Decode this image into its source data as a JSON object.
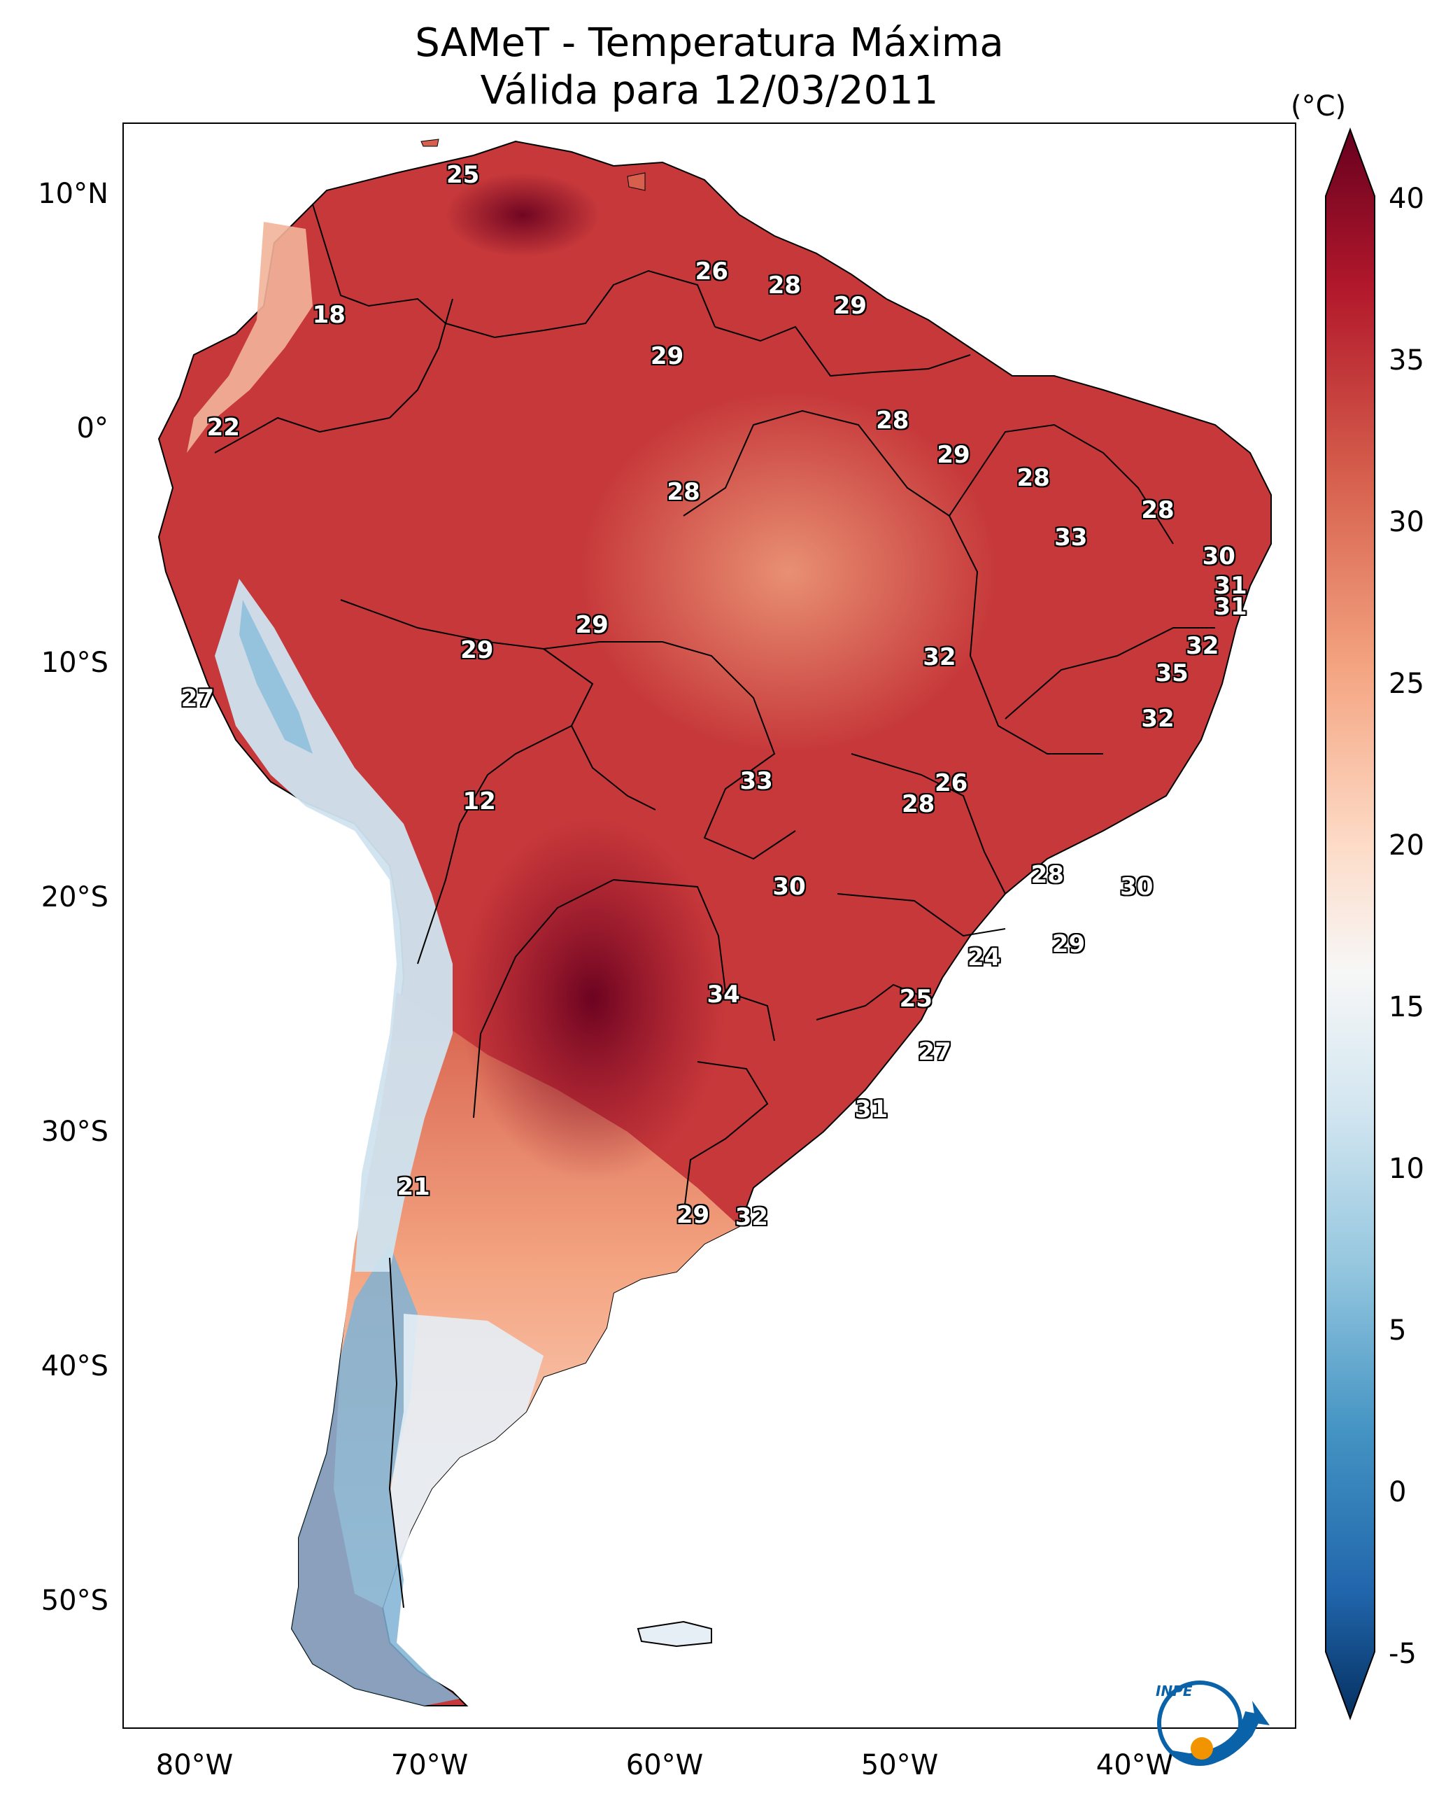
{
  "title": {
    "line1": "SAMeT - Temperatura Máxima",
    "line2": "Válida para 12/03/2011"
  },
  "axes": {
    "lat_labels": [
      "10°N",
      "0°",
      "10°S",
      "20°S",
      "30°S",
      "40°S",
      "50°S"
    ],
    "lat_values": [
      10,
      0,
      -10,
      -20,
      -30,
      -40,
      -50
    ],
    "lon_labels": [
      "80°W",
      "70°W",
      "60°W",
      "50°W",
      "40°W"
    ],
    "lon_values": [
      -80,
      -70,
      -60,
      -50,
      -40
    ],
    "lon_range": [
      -83,
      -33
    ],
    "lat_range": [
      13,
      -57
    ]
  },
  "colorbar": {
    "unit": "(°C)",
    "tick_labels": [
      "40",
      "35",
      "30",
      "25",
      "20",
      "15",
      "10",
      "5",
      "0",
      "-5"
    ],
    "tick_values": [
      40,
      35,
      30,
      25,
      20,
      15,
      10,
      5,
      0,
      -5
    ],
    "range": [
      -5,
      40
    ],
    "colors": [
      "#053061",
      "#2166ac",
      "#4393c3",
      "#92c5de",
      "#d1e5f0",
      "#f7f7f7",
      "#fddbc7",
      "#f4a582",
      "#d6604d",
      "#b2182b",
      "#67001f"
    ]
  },
  "map_values": [
    {
      "value": "25",
      "lon": -68.5,
      "lat": 10.7
    },
    {
      "value": "26",
      "lon": -57.9,
      "lat": 6.5
    },
    {
      "value": "28",
      "lon": -54.8,
      "lat": 5.9
    },
    {
      "value": "29",
      "lon": -52.0,
      "lat": 5.0
    },
    {
      "value": "18",
      "lon": -74.2,
      "lat": 4.6
    },
    {
      "value": "29",
      "lon": -59.8,
      "lat": 2.8
    },
    {
      "value": "22",
      "lon": -78.7,
      "lat": -0.3
    },
    {
      "value": "28",
      "lon": -50.2,
      "lat": 0.0
    },
    {
      "value": "29",
      "lon": -47.6,
      "lat": -1.5
    },
    {
      "value": "28",
      "lon": -59.1,
      "lat": -3.1
    },
    {
      "value": "28",
      "lon": -44.2,
      "lat": -2.5
    },
    {
      "value": "28",
      "lon": -38.9,
      "lat": -3.9
    },
    {
      "value": "33",
      "lon": -42.6,
      "lat": -5.1
    },
    {
      "value": "30",
      "lon": -36.3,
      "lat": -5.9
    },
    {
      "value": "31",
      "lon": -35.8,
      "lat": -7.2
    },
    {
      "value": "31",
      "lon": -35.8,
      "lat": -8.1
    },
    {
      "value": "29",
      "lon": -63.0,
      "lat": -8.9
    },
    {
      "value": "29",
      "lon": -67.9,
      "lat": -10.0
    },
    {
      "value": "32",
      "lon": -37.0,
      "lat": -9.8
    },
    {
      "value": "32",
      "lon": -48.2,
      "lat": -10.3
    },
    {
      "value": "35",
      "lon": -38.3,
      "lat": -11.0
    },
    {
      "value": "27",
      "lon": -79.8,
      "lat": -12.1
    },
    {
      "value": "32",
      "lon": -38.9,
      "lat": -13.0
    },
    {
      "value": "33",
      "lon": -56.0,
      "lat": -15.7
    },
    {
      "value": "26",
      "lon": -47.7,
      "lat": -15.8
    },
    {
      "value": "28",
      "lon": -49.1,
      "lat": -16.7
    },
    {
      "value": "12",
      "lon": -67.8,
      "lat": -16.6
    },
    {
      "value": "30",
      "lon": -54.6,
      "lat": -20.3
    },
    {
      "value": "28",
      "lon": -43.6,
      "lat": -19.8
    },
    {
      "value": "30",
      "lon": -39.8,
      "lat": -20.3
    },
    {
      "value": "29",
      "lon": -42.7,
      "lat": -22.8
    },
    {
      "value": "24",
      "lon": -46.3,
      "lat": -23.4
    },
    {
      "value": "34",
      "lon": -57.4,
      "lat": -25.0
    },
    {
      "value": "25",
      "lon": -49.2,
      "lat": -25.2
    },
    {
      "value": "27",
      "lon": -48.4,
      "lat": -27.5
    },
    {
      "value": "31",
      "lon": -51.1,
      "lat": -30.0
    },
    {
      "value": "21",
      "lon": -70.6,
      "lat": -33.4
    },
    {
      "value": "29",
      "lon": -58.7,
      "lat": -34.6
    },
    {
      "value": "32",
      "lon": -56.2,
      "lat": -34.7
    }
  ],
  "logo": {
    "text": "INPE"
  }
}
